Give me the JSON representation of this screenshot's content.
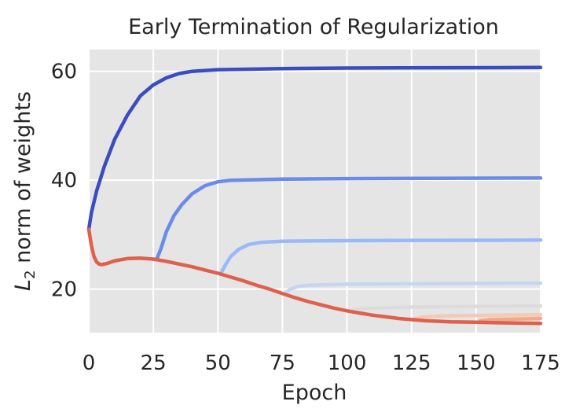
{
  "chart_data": {
    "type": "line",
    "title": "Early Termination of Regularization",
    "xlabel": "Epoch",
    "ylabel_main": "L",
    "ylabel_sub": "2",
    "ylabel_rest": " norm of weights",
    "xlim": [
      0,
      175
    ],
    "ylim": [
      12,
      64
    ],
    "xticks": [
      0,
      25,
      50,
      75,
      100,
      125,
      150,
      175
    ],
    "yticks": [
      20,
      40,
      60
    ],
    "grid": true,
    "background": "#e5e5e5",
    "series": [
      {
        "color": "#3b4cc0",
        "width": 4.5,
        "points": [
          [
            0,
            31
          ],
          [
            1,
            34
          ],
          [
            3,
            38
          ],
          [
            6,
            42.5
          ],
          [
            10,
            47.5
          ],
          [
            15,
            52
          ],
          [
            20,
            55.5
          ],
          [
            25,
            57.5
          ],
          [
            30,
            58.8
          ],
          [
            35,
            59.6
          ],
          [
            40,
            60
          ],
          [
            50,
            60.3
          ],
          [
            75,
            60.5
          ],
          [
            100,
            60.6
          ],
          [
            175,
            60.7
          ]
        ]
      },
      {
        "color": "#6a8be8",
        "width": 4.5,
        "points": [
          [
            26.5,
            25.7
          ],
          [
            28,
            27.5
          ],
          [
            30,
            30.5
          ],
          [
            33,
            33.5
          ],
          [
            36,
            35.5
          ],
          [
            40,
            37.5
          ],
          [
            45,
            39
          ],
          [
            50,
            39.7
          ],
          [
            55,
            40
          ],
          [
            75,
            40.2
          ],
          [
            100,
            40.3
          ],
          [
            175,
            40.4
          ]
        ]
      },
      {
        "color": "#9ab9f9",
        "width": 4.5,
        "points": [
          [
            51.5,
            23.2
          ],
          [
            53,
            24.5
          ],
          [
            55,
            26
          ],
          [
            58,
            27.3
          ],
          [
            62,
            28.2
          ],
          [
            67,
            28.6
          ],
          [
            75,
            28.8
          ],
          [
            100,
            28.9
          ],
          [
            175,
            29
          ]
        ]
      },
      {
        "color": "#c5d6f2",
        "width": 4.5,
        "points": [
          [
            76.5,
            19.4
          ],
          [
            78,
            20
          ],
          [
            81,
            20.5
          ],
          [
            85,
            20.7
          ],
          [
            100,
            20.9
          ],
          [
            175,
            21.1
          ]
        ]
      },
      {
        "color": "#dddcdc",
        "width": 4.5,
        "points": [
          [
            101.5,
            16.1
          ],
          [
            104,
            16.3
          ],
          [
            110,
            16.5
          ],
          [
            125,
            16.7
          ],
          [
            175,
            16.9
          ]
        ]
      },
      {
        "color": "#f2cbb7",
        "width": 4.5,
        "points": [
          [
            126.5,
            14.6
          ],
          [
            130,
            14.9
          ],
          [
            140,
            15.1
          ],
          [
            175,
            15.3
          ]
        ]
      },
      {
        "color": "#f3a889",
        "width": 4.5,
        "points": [
          [
            151.5,
            14.2
          ],
          [
            155,
            14.4
          ],
          [
            165,
            14.5
          ],
          [
            175,
            14.6
          ]
        ]
      },
      {
        "color": "#de604d",
        "width": 4.5,
        "points": [
          [
            0,
            31
          ],
          [
            1,
            28
          ],
          [
            2,
            26
          ],
          [
            3,
            25
          ],
          [
            4,
            24.6
          ],
          [
            5,
            24.5
          ],
          [
            7,
            24.7
          ],
          [
            10,
            25.2
          ],
          [
            15,
            25.6
          ],
          [
            20,
            25.7
          ],
          [
            25,
            25.5
          ],
          [
            30,
            25.1
          ],
          [
            35,
            24.6
          ],
          [
            40,
            24.1
          ],
          [
            45,
            23.5
          ],
          [
            50,
            22.9
          ],
          [
            55,
            22.2
          ],
          [
            60,
            21.5
          ],
          [
            65,
            20.7
          ],
          [
            70,
            20
          ],
          [
            75,
            19.2
          ],
          [
            80,
            18.4
          ],
          [
            85,
            17.7
          ],
          [
            90,
            17.1
          ],
          [
            95,
            16.5
          ],
          [
            100,
            16
          ],
          [
            105,
            15.6
          ],
          [
            110,
            15.2
          ],
          [
            115,
            14.9
          ],
          [
            120,
            14.6
          ],
          [
            125,
            14.4
          ],
          [
            130,
            14.2
          ],
          [
            140,
            14.0
          ],
          [
            150,
            13.9
          ],
          [
            160,
            13.8
          ],
          [
            175,
            13.7
          ]
        ]
      }
    ]
  }
}
